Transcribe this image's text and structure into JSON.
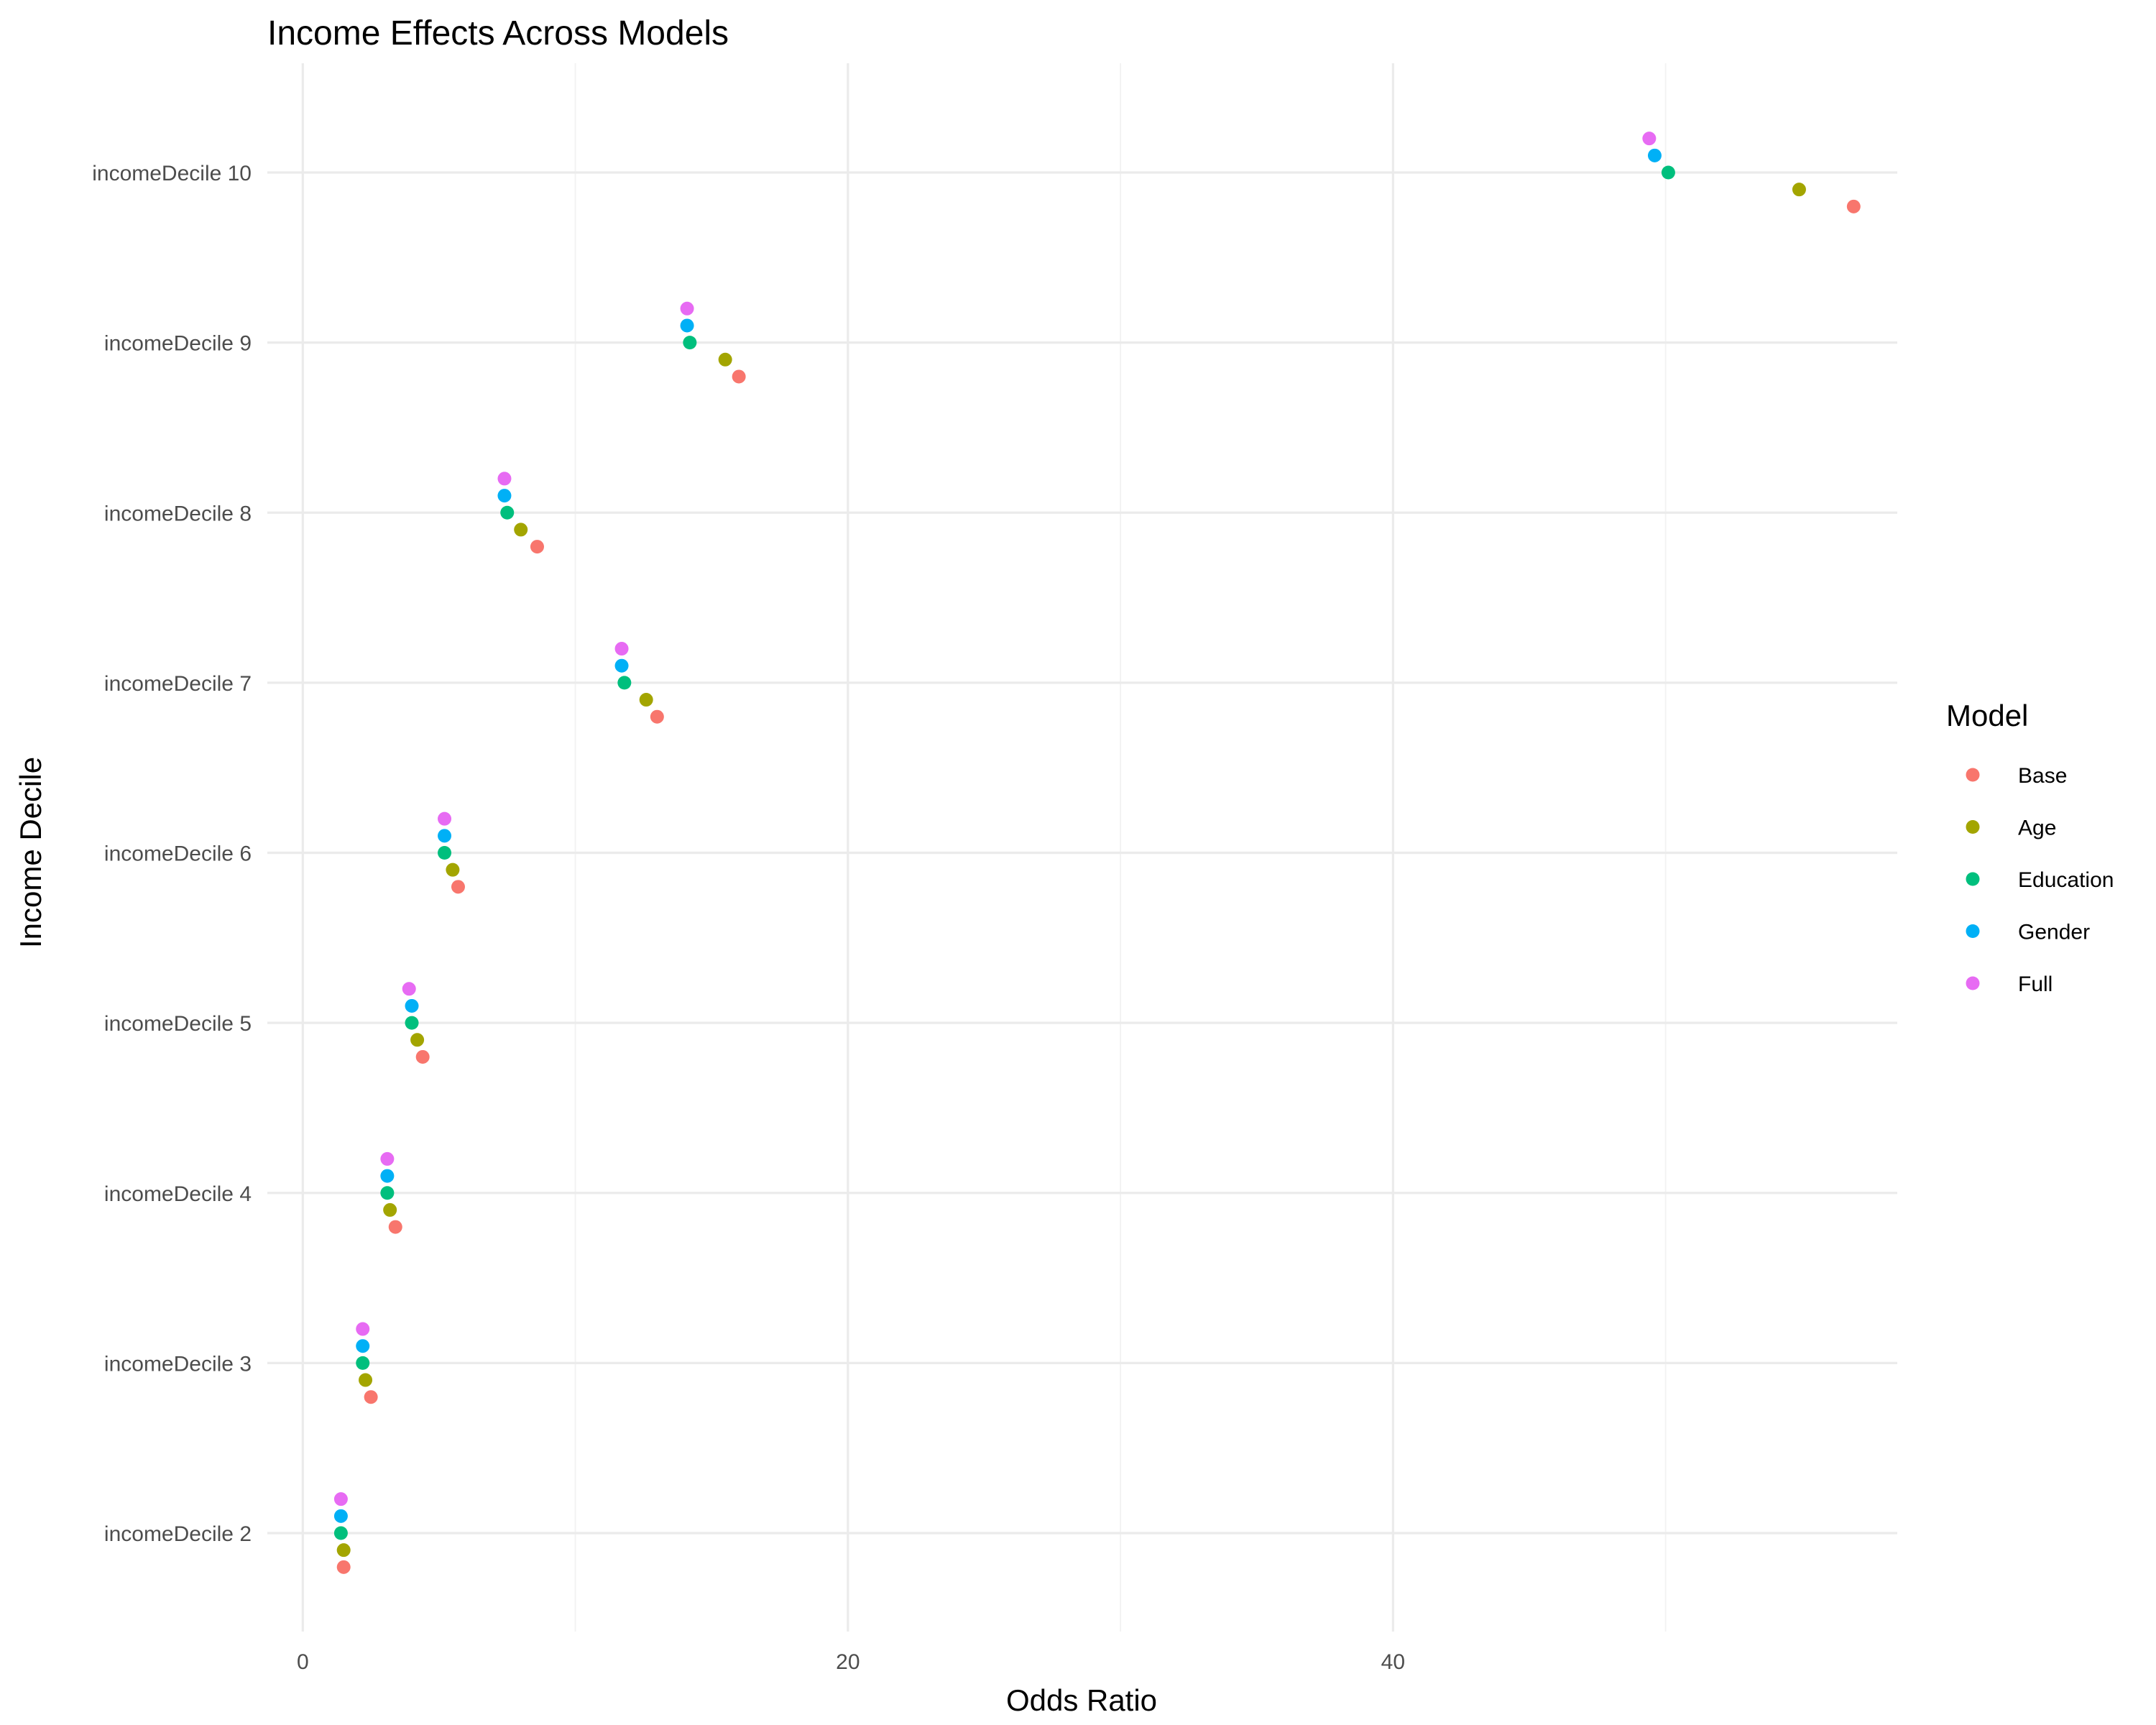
{
  "chart_data": {
    "type": "scatter",
    "title": "Income Effects Across Models",
    "xlabel": "Odds Ratio",
    "ylabel": "Income Decile",
    "xlim": [
      -1.3,
      58.5
    ],
    "x_ticks": [
      0,
      20,
      40
    ],
    "x_minor_ticks": [
      10,
      30,
      50
    ],
    "categories": [
      "incomeDecile 2",
      "incomeDecile 3",
      "incomeDecile 4",
      "incomeDecile 5",
      "incomeDecile 6",
      "incomeDecile 7",
      "incomeDecile 8",
      "incomeDecile 9",
      "incomeDecile 10"
    ],
    "grid": true,
    "legend": {
      "title": "Model",
      "position": "right"
    },
    "series": [
      {
        "name": "Base",
        "color": "#F8766D",
        "offset": -0.2,
        "values": [
          1.5,
          2.5,
          3.4,
          4.4,
          5.7,
          13.0,
          8.6,
          16.0,
          56.9
        ]
      },
      {
        "name": "Age",
        "color": "#A3A500",
        "offset": -0.1,
        "values": [
          1.5,
          2.3,
          3.2,
          4.2,
          5.5,
          12.6,
          8.0,
          15.5,
          54.9
        ]
      },
      {
        "name": "Education",
        "color": "#00BF7D",
        "offset": 0.0,
        "values": [
          1.4,
          2.2,
          3.1,
          4.0,
          5.2,
          11.8,
          7.5,
          14.2,
          50.1
        ]
      },
      {
        "name": "Gender",
        "color": "#00B0F6",
        "offset": 0.1,
        "values": [
          1.4,
          2.2,
          3.1,
          4.0,
          5.2,
          11.7,
          7.4,
          14.1,
          49.6
        ]
      },
      {
        "name": "Full",
        "color": "#E76BF3",
        "offset": 0.2,
        "values": [
          1.4,
          2.2,
          3.1,
          3.9,
          5.2,
          11.7,
          7.4,
          14.1,
          49.4
        ]
      }
    ]
  }
}
